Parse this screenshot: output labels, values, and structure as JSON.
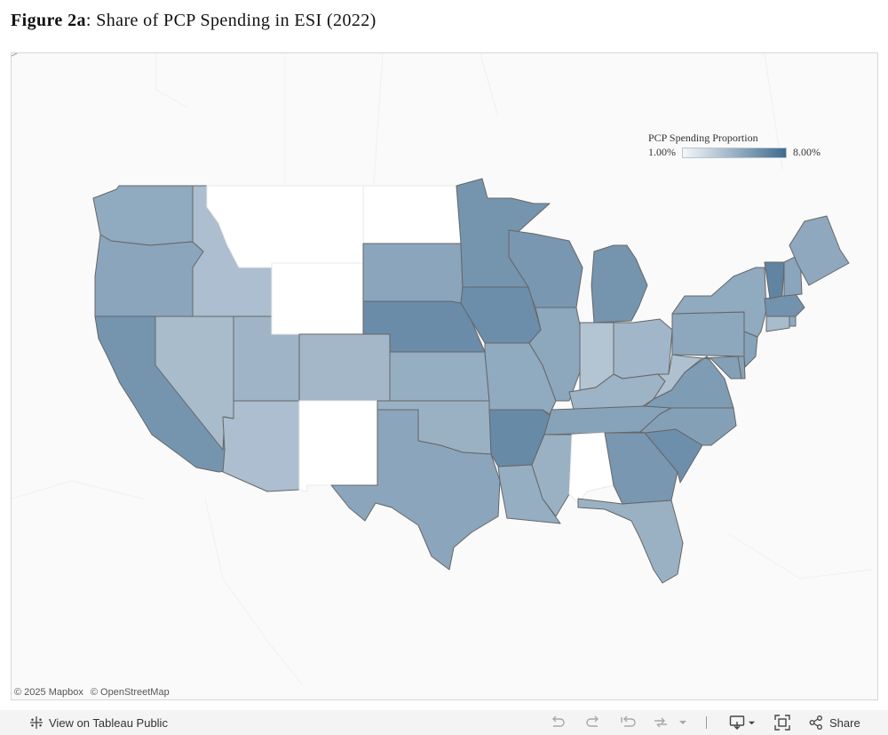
{
  "title": {
    "label": "Figure 2a",
    "rest": ": Share of PCP Spending in ESI (2022)"
  },
  "legend": {
    "title": "PCP Spending Proportion",
    "min_label": "1.00%",
    "max_label": "8.00%",
    "min_value": 1.0,
    "max_value": 8.0,
    "color_low": "#f4f6f9",
    "color_high": "#3f6b8f"
  },
  "colors": {
    "no_data": "#ffffff",
    "state_border": "#666666",
    "map_background": "#fafafa"
  },
  "map_data": [
    {
      "state": "WA",
      "level": 0.55
    },
    {
      "state": "OR",
      "level": 0.58
    },
    {
      "state": "CA",
      "level": 0.7
    },
    {
      "state": "ID",
      "level": 0.4
    },
    {
      "state": "NV",
      "level": 0.42
    },
    {
      "state": "UT",
      "level": 0.47
    },
    {
      "state": "AZ",
      "level": 0.4
    },
    {
      "state": "MT",
      "level": null
    },
    {
      "state": "WY",
      "level": null
    },
    {
      "state": "CO",
      "level": 0.45
    },
    {
      "state": "NM",
      "level": null
    },
    {
      "state": "ND",
      "level": null
    },
    {
      "state": "SD",
      "level": 0.58
    },
    {
      "state": "NE",
      "level": 0.76
    },
    {
      "state": "KS",
      "level": 0.52
    },
    {
      "state": "OK",
      "level": 0.5
    },
    {
      "state": "TX",
      "level": 0.58
    },
    {
      "state": "MN",
      "level": 0.7
    },
    {
      "state": "IA",
      "level": 0.75
    },
    {
      "state": "MO",
      "level": 0.55
    },
    {
      "state": "AR",
      "level": 0.78
    },
    {
      "state": "LA",
      "level": 0.52
    },
    {
      "state": "WI",
      "level": 0.68
    },
    {
      "state": "IL",
      "level": 0.57
    },
    {
      "state": "MS",
      "level": 0.5
    },
    {
      "state": "MI",
      "level": 0.7
    },
    {
      "state": "IN",
      "level": 0.36
    },
    {
      "state": "OH",
      "level": 0.46
    },
    {
      "state": "KY",
      "level": 0.48
    },
    {
      "state": "TN",
      "level": 0.6
    },
    {
      "state": "AL",
      "level": null
    },
    {
      "state": "GA",
      "level": 0.68
    },
    {
      "state": "FL",
      "level": 0.5
    },
    {
      "state": "SC",
      "level": 0.74
    },
    {
      "state": "NC",
      "level": 0.62
    },
    {
      "state": "VA",
      "level": 0.65
    },
    {
      "state": "WV",
      "level": 0.38
    },
    {
      "state": "MD",
      "level": 0.62
    },
    {
      "state": "DE",
      "level": 0.6
    },
    {
      "state": "NJ",
      "level": 0.6
    },
    {
      "state": "PA",
      "level": 0.57
    },
    {
      "state": "NY",
      "level": 0.55
    },
    {
      "state": "CT",
      "level": 0.42
    },
    {
      "state": "RI",
      "level": 0.55
    },
    {
      "state": "MA",
      "level": 0.72
    },
    {
      "state": "VT",
      "level": 0.82
    },
    {
      "state": "NH",
      "level": 0.58
    },
    {
      "state": "ME",
      "level": 0.56
    }
  ],
  "attribution": {
    "mapbox": "© 2025 Mapbox",
    "osm": "© OpenStreetMap"
  },
  "toolbar": {
    "view_label": "View on Tableau Public",
    "share_label": "Share"
  },
  "icons": {
    "view": "tableau-logo-icon",
    "undo": "undo-icon",
    "redo": "redo-icon",
    "revert": "revert-icon",
    "refresh": "refresh-icon",
    "download": "download-icon",
    "fullscreen": "fullscreen-icon",
    "share": "share-icon"
  }
}
